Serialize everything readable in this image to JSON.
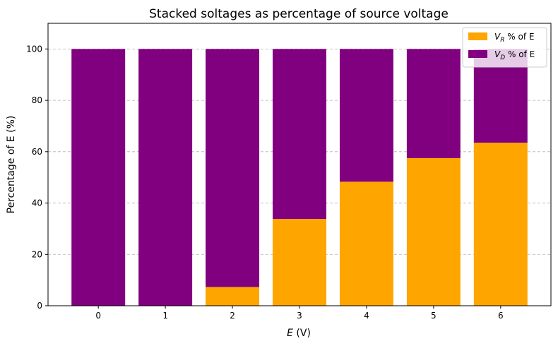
{
  "chart_data": {
    "type": "bar",
    "stacked": true,
    "title": "Stacked soltages as percentage of source voltage",
    "xlabel_var": "E",
    "xlabel_unit": " (V)",
    "ylabel": "Percentage of E (%)",
    "categories": [
      "0",
      "1",
      "2",
      "3",
      "4",
      "5",
      "6"
    ],
    "ylim": [
      0,
      110
    ],
    "yticks": [
      0,
      20,
      40,
      60,
      80,
      100
    ],
    "grid": "y-dashed",
    "legend_position": "top-right",
    "series": [
      {
        "name_var": "V",
        "name_sub": "R",
        "name_rest": " % of E",
        "color": "#FFA500",
        "values": [
          0,
          0,
          7.3,
          33.8,
          48.3,
          57.5,
          63.5
        ]
      },
      {
        "name_var": "V",
        "name_sub": "D",
        "name_rest": " % of E",
        "color": "#800080",
        "values": [
          100,
          100,
          92.7,
          66.2,
          51.7,
          42.5,
          36.5
        ]
      }
    ]
  }
}
